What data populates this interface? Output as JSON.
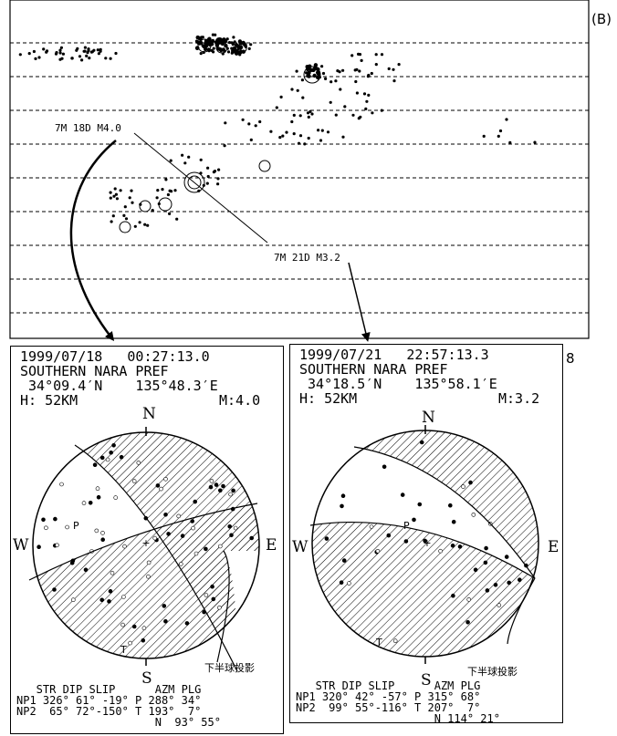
{
  "timeline": {
    "label": "(B)",
    "annotations": [
      {
        "text": "7M 18D  M4.0"
      },
      {
        "text": "7M 21D  M3.2"
      }
    ]
  },
  "events": [
    {
      "datetime": "1999/07/18   00:27:13.0",
      "region": "SOUTHERN NARA PREF",
      "coords": " 34°09.4′N    135°48.3′E",
      "depth": "H: 52KM",
      "magnitude": "M:4.0",
      "directions": {
        "n": "N",
        "s": "S",
        "e": "E",
        "w": "W",
        "p": "P",
        "t": "T"
      },
      "projection": "下半球投影",
      "table": {
        "header": "   STR DIP SLIP      AZM PLG",
        "rows": [
          "NP1 326° 61° -19° P 288° 34°",
          "NP2  65° 72°-150° T 193°  7°",
          "                     N  93° 55°"
        ]
      }
    },
    {
      "datetime": "1999/07/21   22:57:13.3",
      "region": "SOUTHERN NARA PREF",
      "coords": " 34°18.5′N    135°58.1′E",
      "depth": "H: 52KM",
      "magnitude": "M:3.2",
      "directions": {
        "n": "N",
        "s": "S",
        "e": "E",
        "w": "W",
        "p": "P",
        "t": "T"
      },
      "projection": "下半球投影",
      "table": {
        "header": "   STR DIP SLIP      AZM PLG",
        "rows": [
          "NP1 320° 42° -57° P 315° 68°",
          "NP2  99° 55°-116° T 207°  7°",
          "                     N 114° 21°"
        ]
      }
    }
  ],
  "figure_number": "8"
}
